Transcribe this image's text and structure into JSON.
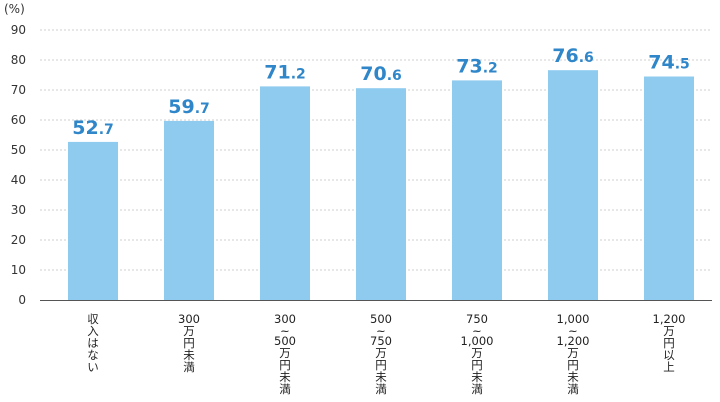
{
  "chart_data": {
    "type": "bar",
    "unit_label": "(%)",
    "ylim": [
      0,
      90
    ],
    "yticks": [
      0,
      10,
      20,
      30,
      40,
      50,
      60,
      70,
      80,
      90
    ],
    "grid": true,
    "bar_color": "#8ecbee",
    "label_color": "#2f86c9",
    "categories": [
      [
        "収入はない"
      ],
      [
        "300",
        "万円未満"
      ],
      [
        "300",
        "~",
        "500",
        "万円未満"
      ],
      [
        "500",
        "~",
        "750",
        "万円未満"
      ],
      [
        "750",
        "~",
        "1,000",
        "万円未満"
      ],
      [
        "1,000",
        "~",
        "1,200",
        "万円未満"
      ],
      [
        "1,200",
        "万円以上"
      ]
    ],
    "values": [
      52.7,
      59.7,
      71.2,
      70.6,
      73.2,
      76.6,
      74.5
    ]
  }
}
